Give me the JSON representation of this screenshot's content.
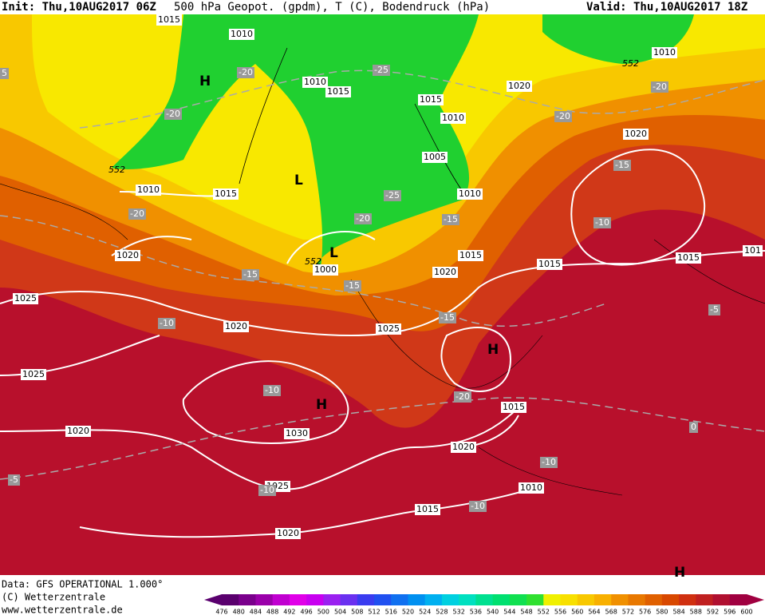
{
  "header": {
    "init": "Init: Thu,10AUG2017 06Z",
    "title": "500 hPa Geopot. (gpdm), T (C), Bodendruck (hPa)",
    "valid": "Valid: Thu,10AUG2017 18Z"
  },
  "footer": {
    "data": "Data: GFS OPERATIONAL 1.000°",
    "copyright": "(C) Wetterzentrale",
    "url": "www.wetterzentrale.de"
  },
  "isobar_labels": [
    1015,
    1010,
    1010,
    1015,
    1015,
    1010,
    1005,
    1010,
    1015,
    1020,
    1000,
    1015,
    1010,
    1020,
    1025,
    1020,
    1025,
    1025,
    1030,
    1020,
    1025,
    1020,
    1015,
    1010,
    1020,
    1015,
    1015,
    1015,
    1020,
    1020,
    1010,
    101
  ],
  "temperature_labels": [
    -20,
    -20,
    -25,
    -20,
    -20,
    -20,
    -15,
    -25,
    -20,
    -15,
    -10,
    -15,
    -15,
    -15,
    -10,
    -10,
    -20,
    -5,
    0,
    -10,
    -5,
    -10,
    -10,
    5
  ],
  "height_labels": [
    552,
    552,
    552
  ],
  "pressure_centers": [
    "H",
    "L",
    "L",
    "H",
    "H",
    "H"
  ],
  "colorbar": {
    "labels": [
      476,
      480,
      484,
      488,
      492,
      496,
      500,
      504,
      508,
      512,
      516,
      520,
      524,
      528,
      532,
      536,
      540,
      544,
      548,
      552,
      556,
      560,
      564,
      568,
      572,
      576,
      580,
      584,
      588,
      592,
      596,
      600
    ],
    "colors": [
      "#5a006e",
      "#7a008c",
      "#9a00aa",
      "#c000d0",
      "#e000e8",
      "#c800f0",
      "#9a20f0",
      "#6a30f0",
      "#3a3cf0",
      "#2050f0",
      "#1070f0",
      "#0090f0",
      "#00b0f0",
      "#00d0e0",
      "#00e0c0",
      "#00e090",
      "#00e070",
      "#10e050",
      "#30e030",
      "#f0f000",
      "#f8e000",
      "#f8c800",
      "#f8b000",
      "#f09000",
      "#e87800",
      "#e06000",
      "#d84800",
      "#d03010",
      "#c02020",
      "#b01030",
      "#a00040"
    ]
  }
}
